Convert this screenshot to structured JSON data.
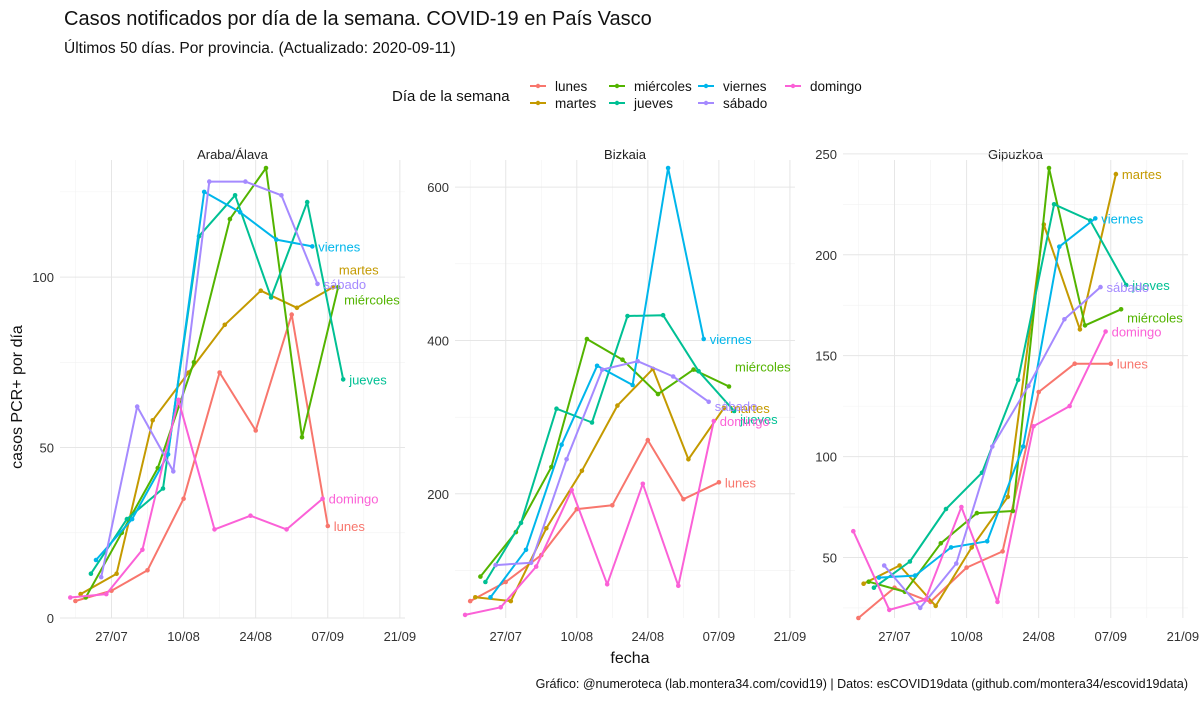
{
  "title": "Casos notificados por día de la semana. COVID-19 en País Vasco",
  "subtitle": "Últimos 50 días. Por provincia. (Actualizado: 2020-09-11)",
  "caption": "Gráfico: @numeroteca (lab.montera34.com/covid19) | Datos: esCOVID19data (github.com/montera34/escovid19data)",
  "legend": {
    "title": "Día de la semana",
    "position": "top",
    "items": [
      {
        "name": "lunes",
        "color": "#F8766D"
      },
      {
        "name": "martes",
        "color": "#C49A00"
      },
      {
        "name": "miércoles",
        "color": "#53B400"
      },
      {
        "name": "jueves",
        "color": "#00C094"
      },
      {
        "name": "viernes",
        "color": "#00B6EB"
      },
      {
        "name": "sábado",
        "color": "#A58AFF"
      },
      {
        "name": "domingo",
        "color": "#FB61D7"
      }
    ]
  },
  "chart_data": {
    "type": "line",
    "xlabel": "fecha",
    "ylabel": "casos PCR+ por día",
    "x_ticks": [
      "27/07",
      "10/08",
      "24/08",
      "07/09",
      "21/09"
    ],
    "grid": true,
    "panels": [
      {
        "name": "Araba/Álava",
        "ylim": [
          0,
          132
        ],
        "y_ticks": [
          0,
          50,
          100
        ],
        "series": [
          {
            "name": "lunes",
            "x": [
              "2020-07-20",
              "2020-07-27",
              "2020-08-03",
              "2020-08-10",
              "2020-08-17",
              "2020-08-24",
              "2020-08-31",
              "2020-09-07"
            ],
            "y": [
              5,
              8,
              14,
              35,
              72,
              55,
              89,
              27
            ]
          },
          {
            "name": "martes",
            "x": [
              "2020-07-21",
              "2020-07-28",
              "2020-08-04",
              "2020-08-11",
              "2020-08-18",
              "2020-08-25",
              "2020-09-01",
              "2020-09-08"
            ],
            "y": [
              7,
              13,
              58,
              72,
              86,
              96,
              91,
              97
            ]
          },
          {
            "name": "miércoles",
            "x": [
              "2020-07-22",
              "2020-07-29",
              "2020-08-05",
              "2020-08-12",
              "2020-08-19",
              "2020-08-26",
              "2020-09-02",
              "2020-09-09"
            ],
            "y": [
              6,
              25,
              44,
              75,
              117,
              132,
              53,
              97
            ]
          },
          {
            "name": "jueves",
            "x": [
              "2020-07-23",
              "2020-07-30",
              "2020-08-06",
              "2020-08-13",
              "2020-08-20",
              "2020-08-27",
              "2020-09-03",
              "2020-09-10"
            ],
            "y": [
              13,
              29,
              38,
              112,
              124,
              94,
              122,
              70
            ]
          },
          {
            "name": "viernes",
            "x": [
              "2020-07-24",
              "2020-07-31",
              "2020-08-07",
              "2020-08-14",
              "2020-08-21",
              "2020-08-28",
              "2020-09-04"
            ],
            "y": [
              17,
              29,
              48,
              125,
              119,
              111,
              109
            ]
          },
          {
            "name": "sábado",
            "x": [
              "2020-07-25",
              "2020-08-01",
              "2020-08-08",
              "2020-08-15",
              "2020-08-22",
              "2020-08-29",
              "2020-09-05"
            ],
            "y": [
              12,
              62,
              43,
              128,
              128,
              124,
              98
            ]
          },
          {
            "name": "domingo",
            "x": [
              "2020-07-19",
              "2020-07-26",
              "2020-08-02",
              "2020-08-09",
              "2020-08-16",
              "2020-08-23",
              "2020-08-30",
              "2020-09-06"
            ],
            "y": [
              6,
              7,
              20,
              64,
              26,
              30,
              26,
              35
            ]
          }
        ]
      },
      {
        "name": "Bizkaia",
        "ylim": [
          38,
          625
        ],
        "y_ticks": [
          200,
          400,
          600
        ],
        "series": [
          {
            "name": "lunes",
            "x": [
              "2020-07-20",
              "2020-07-27",
              "2020-08-03",
              "2020-08-10",
              "2020-08-17",
              "2020-08-24",
              "2020-08-31",
              "2020-09-07"
            ],
            "y": [
              60,
              85,
              120,
              180,
              185,
              270,
              193,
              215
            ]
          },
          {
            "name": "martes",
            "x": [
              "2020-07-21",
              "2020-07-28",
              "2020-08-04",
              "2020-08-11",
              "2020-08-18",
              "2020-08-25",
              "2020-09-01",
              "2020-09-08"
            ],
            "y": [
              65,
              60,
              155,
              230,
              315,
              363,
              245,
              312
            ]
          },
          {
            "name": "miércoles",
            "x": [
              "2020-07-22",
              "2020-07-29",
              "2020-08-05",
              "2020-08-12",
              "2020-08-19",
              "2020-08-26",
              "2020-09-02",
              "2020-09-09"
            ],
            "y": [
              92,
              150,
              235,
              402,
              375,
              330,
              362,
              340
            ]
          },
          {
            "name": "jueves",
            "x": [
              "2020-07-23",
              "2020-07-30",
              "2020-08-06",
              "2020-08-13",
              "2020-08-20",
              "2020-08-27",
              "2020-09-03",
              "2020-09-10"
            ],
            "y": [
              85,
              162,
              311,
              293,
              432,
              433,
              360,
              308
            ]
          },
          {
            "name": "viernes",
            "x": [
              "2020-07-24",
              "2020-07-31",
              "2020-08-07",
              "2020-08-14",
              "2020-08-21",
              "2020-08-28",
              "2020-09-04"
            ],
            "y": [
              65,
              127,
              264,
              367,
              342,
              625,
              402
            ]
          },
          {
            "name": "sábado",
            "x": [
              "2020-07-25",
              "2020-08-01",
              "2020-08-08",
              "2020-08-15",
              "2020-08-22",
              "2020-08-29",
              "2020-09-05"
            ],
            "y": [
              107,
              110,
              245,
              362,
              373,
              353,
              320
            ]
          },
          {
            "name": "domingo",
            "x": [
              "2020-07-19",
              "2020-07-26",
              "2020-08-02",
              "2020-08-09",
              "2020-08-16",
              "2020-08-23",
              "2020-08-30",
              "2020-09-06"
            ],
            "y": [
              42,
              52,
              105,
              205,
              82,
              213,
              80,
              295
            ]
          }
        ]
      },
      {
        "name": "Gipuzkoa",
        "ylim": [
          20,
          243
        ],
        "y_ticks": [
          50,
          100,
          150,
          200,
          250
        ],
        "series": [
          {
            "name": "lunes",
            "x": [
              "2020-07-20",
              "2020-07-27",
              "2020-08-03",
              "2020-08-10",
              "2020-08-17",
              "2020-08-24",
              "2020-08-31",
              "2020-09-07"
            ],
            "y": [
              20,
              35,
              28,
              45,
              53,
              132,
              146,
              146
            ]
          },
          {
            "name": "martes",
            "x": [
              "2020-07-21",
              "2020-07-28",
              "2020-08-04",
              "2020-08-11",
              "2020-08-18",
              "2020-08-25",
              "2020-09-01",
              "2020-09-08"
            ],
            "y": [
              37,
              46,
              26,
              55,
              80,
              215,
              163,
              240
            ]
          },
          {
            "name": "miércoles",
            "x": [
              "2020-07-22",
              "2020-07-29",
              "2020-08-05",
              "2020-08-12",
              "2020-08-19",
              "2020-08-26",
              "2020-09-02",
              "2020-09-09"
            ],
            "y": [
              38,
              33,
              57,
              72,
              73,
              243,
              165,
              173
            ]
          },
          {
            "name": "jueves",
            "x": [
              "2020-07-23",
              "2020-07-30",
              "2020-08-06",
              "2020-08-13",
              "2020-08-20",
              "2020-08-27",
              "2020-09-03",
              "2020-09-10"
            ],
            "y": [
              35,
              48,
              74,
              92,
              138,
              225,
              217,
              185
            ]
          },
          {
            "name": "viernes",
            "x": [
              "2020-07-24",
              "2020-07-31",
              "2020-08-07",
              "2020-08-14",
              "2020-08-21",
              "2020-08-28",
              "2020-09-04"
            ],
            "y": [
              40,
              41,
              55,
              58,
              105,
              204,
              218
            ]
          },
          {
            "name": "sábado",
            "x": [
              "2020-07-25",
              "2020-08-01",
              "2020-08-08",
              "2020-08-15",
              "2020-08-22",
              "2020-08-29",
              "2020-09-05"
            ],
            "y": [
              46,
              25,
              47,
              105,
              135,
              168,
              184
            ]
          },
          {
            "name": "domingo",
            "x": [
              "2020-07-19",
              "2020-07-26",
              "2020-08-02",
              "2020-08-09",
              "2020-08-16",
              "2020-08-23",
              "2020-08-30",
              "2020-09-06"
            ],
            "y": [
              63,
              24,
              29,
              75,
              28,
              115,
              125,
              162
            ]
          }
        ]
      }
    ]
  }
}
